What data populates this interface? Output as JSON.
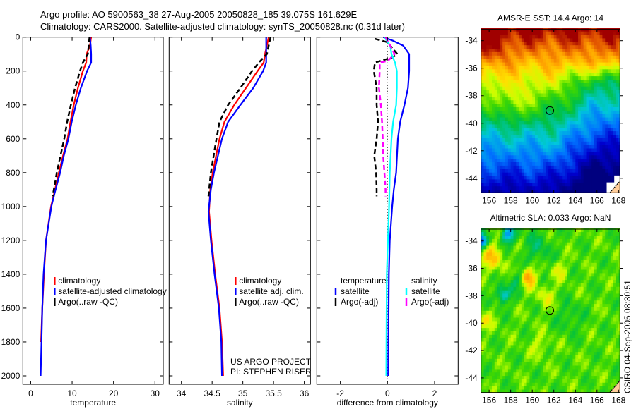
{
  "title": {
    "line1": "Argo profile: AO 5900563_38 27-Aug-2005 20050828_185 39.075S 161.629E",
    "line2": "Climatology: CARS2000. Satellite-adjusted climatology: synTS_20050828.nc (0.31d later)"
  },
  "side_label": "CSIRO 04-Sep-2005 08:30:51",
  "chart_data": [
    {
      "type": "line",
      "id": "temperature",
      "xlabel": "temperature",
      "ylabel": "",
      "xlim": [
        -1.9,
        32
      ],
      "ylim": [
        2050,
        0
      ],
      "xticks": [
        0,
        10,
        20,
        30
      ],
      "yticks": [
        0,
        200,
        400,
        600,
        800,
        1000,
        1200,
        1400,
        1600,
        1800,
        2000
      ],
      "show_ytick_labels": true,
      "series": [
        {
          "name": "climatology",
          "color": "#ff0000",
          "dash": false,
          "depth": [
            0,
            50,
            100,
            150,
            200,
            300,
            400,
            500,
            600,
            700,
            800,
            920,
            1000,
            1200,
            1400,
            1600,
            1800
          ],
          "value": [
            14.6,
            14.3,
            13.5,
            13.4,
            12.6,
            11.4,
            10.4,
            9.6,
            8.9,
            7.8,
            6.8,
            5.7,
            4.9,
            3.7,
            3.2,
            2.8,
            2.5
          ]
        },
        {
          "name": "satellite-adjusted climatology",
          "color": "#0000ff",
          "dash": false,
          "depth": [
            0,
            50,
            100,
            150,
            200,
            300,
            400,
            500,
            600,
            700,
            800,
            920,
            1000,
            1200,
            1400,
            1600,
            1800,
            2000
          ],
          "value": [
            14.3,
            14.5,
            14.6,
            14.6,
            13.6,
            12.1,
            10.9,
            9.9,
            9.1,
            8.0,
            7.1,
            5.8,
            5.0,
            3.7,
            3.1,
            2.8,
            2.6,
            2.4
          ]
        },
        {
          "name": "Argo(..raw -QC)",
          "color": "#000000",
          "dash": true,
          "depth": [
            0,
            50,
            100,
            150,
            200,
            300,
            400,
            500,
            600,
            700,
            800,
            940
          ],
          "value": [
            14.2,
            14.0,
            13.8,
            12.6,
            11.9,
            10.7,
            9.7,
            8.8,
            8.1,
            7.2,
            6.3,
            5.3
          ]
        }
      ],
      "legend": {
        "location": "lower-middle",
        "headers": []
      },
      "annotations": []
    },
    {
      "type": "line",
      "id": "salinity",
      "xlabel": "salinity",
      "ylabel": "",
      "xlim": [
        33.8,
        36.1
      ],
      "ylim": [
        2050,
        0
      ],
      "xticks": [
        34,
        34.5,
        35,
        35.5,
        36
      ],
      "yticks": [
        0,
        200,
        400,
        600,
        800,
        1000,
        1200,
        1400,
        1600,
        1800,
        2000
      ],
      "show_ytick_labels": false,
      "series": [
        {
          "name": "climatology",
          "color": "#ff0000",
          "dash": false,
          "depth": [
            0,
            100,
            150,
            200,
            300,
            400,
            500,
            600,
            800,
            900,
            1030,
            1200,
            1400,
            1600,
            1800,
            2000
          ],
          "value": [
            35.42,
            35.36,
            35.34,
            35.24,
            35.05,
            34.86,
            34.7,
            34.62,
            34.51,
            34.47,
            34.45,
            34.49,
            34.55,
            34.62,
            34.66,
            34.68
          ]
        },
        {
          "name": "satellite adj. clim.",
          "color": "#0000ff",
          "dash": false,
          "depth": [
            0,
            100,
            150,
            200,
            300,
            400,
            500,
            600,
            800,
            900,
            1030,
            1200,
            1400,
            1600,
            1800,
            2000
          ],
          "value": [
            35.38,
            35.38,
            35.38,
            35.33,
            35.17,
            34.96,
            34.76,
            34.66,
            34.53,
            34.48,
            34.44,
            34.48,
            34.54,
            34.61,
            34.65,
            34.66
          ]
        },
        {
          "name": "Argo(..raw -QC)",
          "color": "#000000",
          "dash": true,
          "depth": [
            0,
            100,
            150,
            200,
            300,
            400,
            500,
            600,
            800,
            940
          ],
          "value": [
            35.45,
            35.39,
            35.26,
            35.15,
            34.96,
            34.76,
            34.62,
            34.57,
            34.48,
            34.44
          ]
        }
      ],
      "legend": {
        "location": "lower-middle",
        "headers": []
      },
      "annotations": [
        "US ARGO PROJECT",
        "PI: STEPHEN RISER"
      ]
    },
    {
      "type": "line",
      "id": "difference",
      "xlabel": "difference from climatology",
      "ylabel": "",
      "xlim": [
        -3,
        3
      ],
      "ylim": [
        2050,
        0
      ],
      "xticks": [
        -2,
        0,
        2
      ],
      "yticks": [
        0,
        200,
        400,
        600,
        800,
        1000,
        1200,
        1400,
        1600,
        1800,
        2000
      ],
      "show_ytick_labels": false,
      "zero_line": true,
      "series": [
        {
          "name": "satellite",
          "group": "temperature",
          "color": "#0000ff",
          "dash": false,
          "depth": [
            0,
            20,
            50,
            100,
            200,
            300,
            400,
            500,
            600,
            800,
            900,
            1000,
            1200,
            1400,
            2000
          ],
          "value": [
            -0.18,
            0.22,
            0.67,
            0.92,
            0.92,
            0.87,
            0.72,
            0.54,
            0.44,
            0.37,
            0.27,
            0.2,
            0.1,
            0.06,
            0.03
          ]
        },
        {
          "name": "Argo(-adj)",
          "group": "temperature",
          "color": "#000000",
          "dash": true,
          "depth": [
            10,
            30,
            50,
            100,
            120,
            150,
            200,
            300,
            400,
            500,
            600,
            700,
            800,
            900,
            940
          ],
          "value": [
            -0.53,
            0.0,
            0.12,
            0.42,
            0.2,
            -0.53,
            -0.58,
            -0.46,
            -0.46,
            -0.4,
            -0.46,
            -0.56,
            -0.48,
            -0.46,
            -0.46
          ]
        },
        {
          "name": "satellite",
          "group": "salinity",
          "color": "#00ffff",
          "dash": false,
          "depth": [
            0,
            50,
            100,
            150,
            200,
            300,
            400,
            500,
            600,
            800,
            1000,
            1400,
            2000
          ],
          "value": [
            -0.13,
            0.12,
            0.17,
            0.32,
            0.4,
            0.4,
            0.37,
            0.24,
            0.17,
            0.1,
            0.07,
            -0.03,
            -0.05
          ]
        },
        {
          "name": "Argo(-adj)",
          "group": "salinity",
          "color": "#ff00ff",
          "dash": true,
          "depth": [
            0,
            50,
            100,
            140,
            150,
            200,
            300,
            400,
            500,
            600,
            700,
            800,
            900,
            940
          ],
          "value": [
            -0.08,
            0.12,
            0.3,
            0.02,
            -0.33,
            -0.33,
            -0.36,
            -0.28,
            -0.23,
            -0.2,
            -0.18,
            -0.13,
            -0.08,
            -0.08
          ]
        }
      ],
      "legend": {
        "location": "lower-middle",
        "headers": [
          "temperature",
          "salinity"
        ]
      },
      "annotations": []
    },
    {
      "type": "heatmap",
      "id": "sst-map",
      "title": "AMSR-E SST: 14.4 Argo: 14",
      "xlim": [
        155.25,
        168.13
      ],
      "ylim": [
        -45.05,
        -33.18
      ],
      "xticks": [
        156,
        158,
        160,
        162,
        164,
        166,
        168
      ],
      "yticks": [
        -34,
        -36,
        -38,
        -40,
        -42,
        -44
      ],
      "marker": {
        "lon": 161.629,
        "lat": -39.075
      },
      "land_color": "#ffcc99"
    },
    {
      "type": "heatmap",
      "id": "sla-map",
      "title": "Altimetric SLA: 0.033 Argo: NaN",
      "xlim": [
        155.25,
        168.13
      ],
      "ylim": [
        -45.07,
        -33.14
      ],
      "xticks": [
        156,
        158,
        160,
        162,
        164,
        166,
        168
      ],
      "yticks": [
        -34,
        -36,
        -38,
        -40,
        -42,
        -44
      ],
      "marker": {
        "lon": 161.629,
        "lat": -39.075
      },
      "land_color": "#ffcc99"
    }
  ]
}
